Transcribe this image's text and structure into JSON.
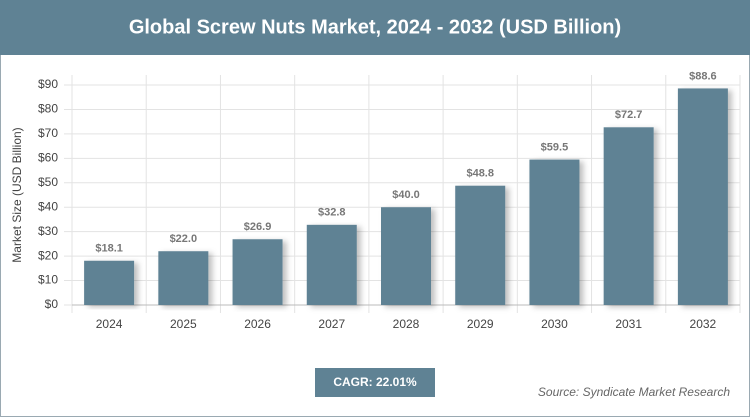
{
  "chart_data": {
    "type": "bar",
    "title": "Global Screw Nuts Market, 2024 - 2032 (USD Billion)",
    "y_label": "Market Size (USD Billion)",
    "categories": [
      "2024",
      "2025",
      "2026",
      "2027",
      "2028",
      "2029",
      "2030",
      "2031",
      "2032"
    ],
    "values": [
      18.1,
      22.0,
      26.9,
      32.8,
      40.0,
      48.8,
      59.5,
      72.7,
      88.6
    ],
    "value_labels": [
      "$18.1",
      "$22.0",
      "$26.9",
      "$32.8",
      "$40.0",
      "$48.8",
      "$59.5",
      "$72.7",
      "$88.6"
    ],
    "color": "#5f8294",
    "ylim": [
      0,
      90
    ],
    "yticks": [
      {
        "value": 0,
        "label": "$0"
      },
      {
        "value": 10,
        "label": "$10"
      },
      {
        "value": 20,
        "label": "$20"
      },
      {
        "value": 30,
        "label": "$30"
      },
      {
        "value": 40,
        "label": "$40"
      },
      {
        "value": 50,
        "label": "$50"
      },
      {
        "value": 60,
        "label": "$60"
      },
      {
        "value": 70,
        "label": "$70"
      },
      {
        "value": 80,
        "label": "$80"
      },
      {
        "value": 90,
        "label": "$90"
      }
    ],
    "grid": true,
    "cagr": "CAGR: 22.01%",
    "source": "Source: Syndicate Market Research"
  }
}
